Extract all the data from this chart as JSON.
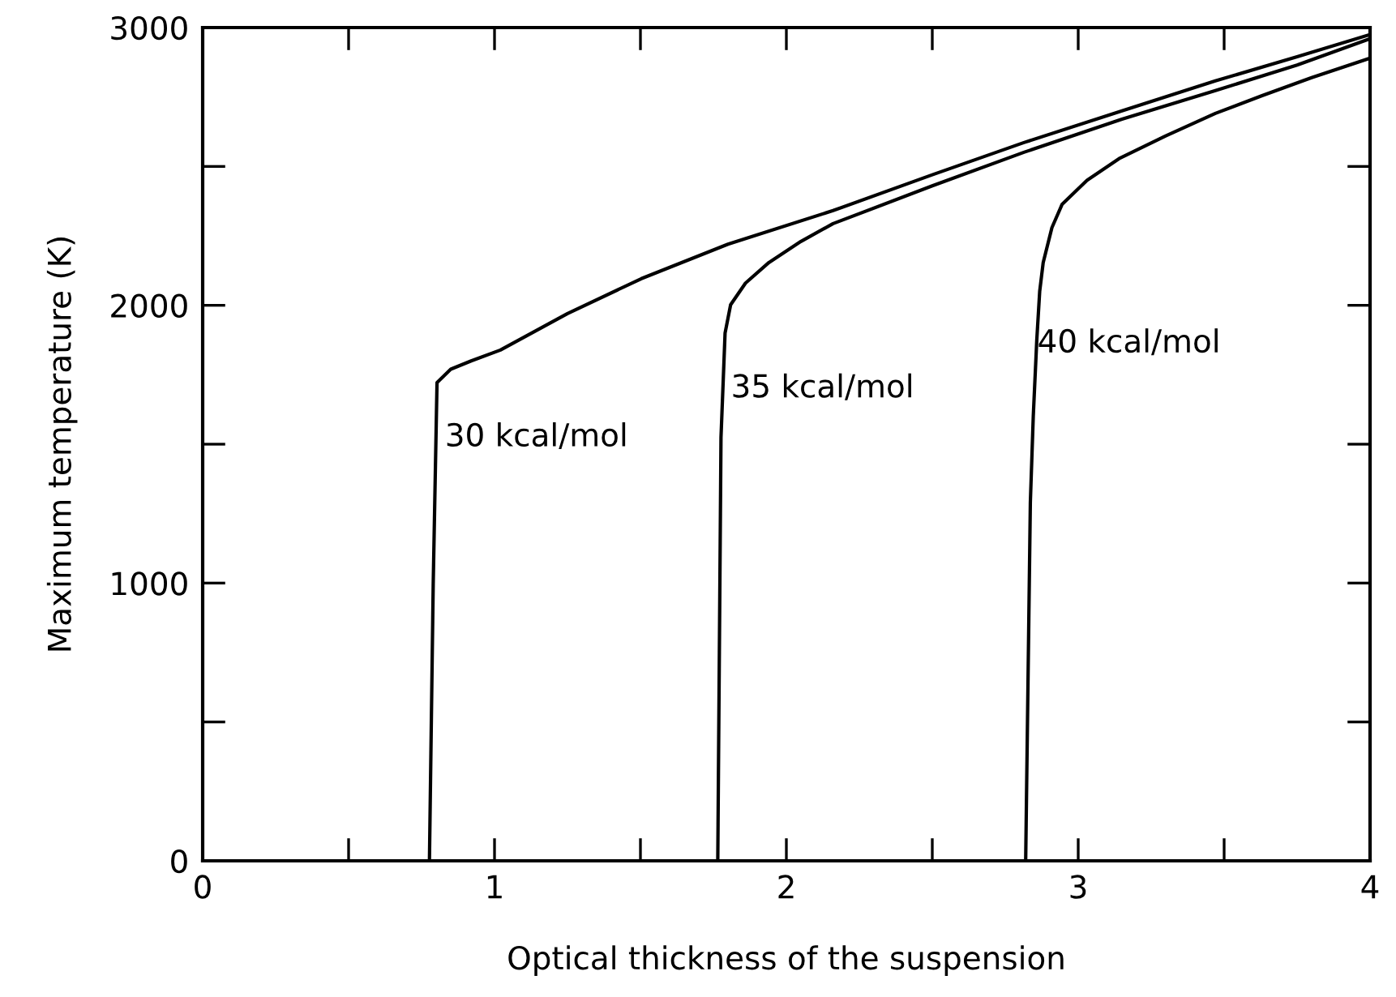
{
  "chart_data": {
    "type": "line",
    "xlabel": "Optical thickness of the suspension",
    "ylabel": "Maximum temperature (K)",
    "xlim": [
      0,
      4
    ],
    "ylim": [
      0,
      3000
    ],
    "xticks": [
      0,
      {
        "value": 0.5,
        "label": null
      },
      1,
      {
        "value": 1.5,
        "label": null
      },
      2,
      {
        "value": 2.5,
        "label": null
      },
      3,
      {
        "value": 3.5,
        "label": null
      },
      4
    ],
    "yticks": [
      0,
      {
        "value": 500,
        "label": null
      },
      1000,
      {
        "value": 1500,
        "label": null
      },
      2000,
      {
        "value": 2500,
        "label": null
      },
      3000
    ],
    "grid": false,
    "marker": "none",
    "line_style": "solid",
    "series": [
      {
        "color": "#000000",
        "x": [
          0.777,
          0.79,
          0.803,
          0.85,
          0.92,
          1.02,
          1.25,
          1.503,
          1.8,
          2.16,
          2.5,
          2.814,
          3.15,
          3.47,
          3.75,
          4.0
        ],
        "values": [
          0,
          1000,
          1722,
          1770,
          1800,
          1839,
          1970,
          2096,
          2220,
          2341,
          2470,
          2586,
          2700,
          2808,
          2895,
          2975
        ]
      },
      {
        "color": "#000000",
        "x": [
          1.765,
          1.776,
          1.79,
          1.809,
          1.86,
          1.94,
          2.05,
          2.16,
          2.5,
          2.814,
          3.15,
          3.47,
          3.75,
          4.0
        ],
        "values": [
          0,
          1524,
          1900,
          2002,
          2080,
          2154,
          2230,
          2294,
          2430,
          2551,
          2670,
          2773,
          2865,
          2960
        ]
      },
      {
        "color": "#000000",
        "x": [
          2.82,
          2.836,
          2.846,
          2.858,
          2.868,
          2.88,
          2.91,
          2.945,
          3.03,
          3.14,
          3.3,
          3.47,
          3.63,
          3.8,
          4.0
        ],
        "values": [
          0,
          1290,
          1600,
          1874,
          2050,
          2154,
          2280,
          2364,
          2450,
          2528,
          2610,
          2691,
          2755,
          2820,
          2890
        ]
      }
    ],
    "annotations": [
      {
        "text": "30 kcal/mol",
        "x": 0.83,
        "y": 1524
      },
      {
        "text": "35 kcal/mol",
        "x": 1.81,
        "y": 1700
      },
      {
        "text": "40 kcal/mol",
        "x": 2.86,
        "y": 1862
      }
    ]
  }
}
